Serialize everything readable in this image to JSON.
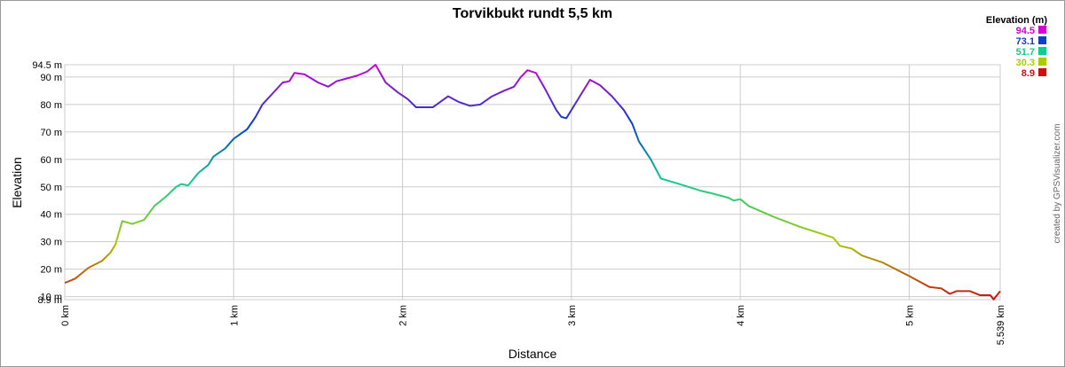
{
  "chart_data": {
    "type": "line",
    "title": "Torvikbukt rundt 5,5 km",
    "x_label": "Distance",
    "y_label": "Elevation",
    "credit": "created by GPSVisualizer.com",
    "legend": {
      "title": "Elevation (m)",
      "items": [
        {
          "value": 94.5,
          "color": "#d400d4"
        },
        {
          "value": 73.1,
          "color": "#0a3fd0"
        },
        {
          "value": 51.7,
          "color": "#10cc90"
        },
        {
          "value": 30.3,
          "color": "#a8cc00"
        },
        {
          "value": 8.9,
          "color": "#cc1010"
        }
      ]
    },
    "xlim": [
      0,
      5.539
    ],
    "ylim": [
      8.9,
      94.5
    ],
    "xticks": [
      {
        "value": 0,
        "label": "0 km"
      },
      {
        "value": 1,
        "label": "1 km"
      },
      {
        "value": 2,
        "label": "2 km"
      },
      {
        "value": 3,
        "label": "3 km"
      },
      {
        "value": 4,
        "label": "4 km"
      },
      {
        "value": 5,
        "label": "5 km"
      },
      {
        "value": 5.539,
        "label": "5.539 km"
      }
    ],
    "yticks": [
      {
        "value": 8.9,
        "label": "8.9 m"
      },
      {
        "value": 10,
        "label": "10 m"
      },
      {
        "value": 20,
        "label": "20 m"
      },
      {
        "value": 30,
        "label": "30 m"
      },
      {
        "value": 40,
        "label": "40 m"
      },
      {
        "value": 50,
        "label": "50 m"
      },
      {
        "value": 60,
        "label": "60 m"
      },
      {
        "value": 70,
        "label": "70 m"
      },
      {
        "value": 80,
        "label": "80 m"
      },
      {
        "value": 90,
        "label": "90 m"
      },
      {
        "value": 94.5,
        "label": "94.5 m"
      }
    ],
    "grid": true,
    "x": [
      0,
      0.06,
      0.14,
      0.22,
      0.27,
      0.3,
      0.34,
      0.4,
      0.47,
      0.53,
      0.6,
      0.66,
      0.69,
      0.73,
      0.79,
      0.85,
      0.88,
      0.95,
      1.0,
      1.08,
      1.13,
      1.17,
      1.23,
      1.29,
      1.33,
      1.36,
      1.42,
      1.5,
      1.56,
      1.61,
      1.67,
      1.73,
      1.79,
      1.84,
      1.9,
      1.97,
      2.03,
      2.08,
      2.18,
      2.27,
      2.33,
      2.4,
      2.46,
      2.53,
      2.6,
      2.66,
      2.7,
      2.74,
      2.79,
      2.85,
      2.91,
      2.94,
      2.97,
      3.02,
      3.07,
      3.11,
      3.17,
      3.24,
      3.31,
      3.36,
      3.4,
      3.47,
      3.53,
      3.64,
      3.77,
      3.84,
      3.93,
      3.96,
      4.0,
      4.05,
      4.2,
      4.35,
      4.5,
      4.55,
      4.59,
      4.66,
      4.72,
      4.84,
      5.0,
      5.12,
      5.19,
      5.24,
      5.28,
      5.36,
      5.42,
      5.48,
      5.5,
      5.539
    ],
    "series": [
      {
        "name": "Elevation",
        "values": [
          15,
          16.5,
          20.5,
          23,
          26,
          29,
          37.5,
          36.5,
          38,
          43,
          46.5,
          50,
          51,
          50.5,
          55,
          58,
          61,
          64,
          67.5,
          71,
          75.5,
          80,
          84,
          88,
          88.5,
          91.5,
          91,
          88,
          86.5,
          88.5,
          89.5,
          90.5,
          92,
          94.5,
          88,
          84.5,
          82,
          79,
          79,
          83,
          81,
          79.5,
          80,
          83,
          85,
          86.5,
          90,
          92.5,
          91.5,
          85,
          78,
          75.5,
          75,
          80,
          85,
          89,
          87,
          83,
          78,
          73,
          66.5,
          60,
          53,
          51,
          48.5,
          47.5,
          46,
          45,
          45.5,
          43,
          39,
          35.5,
          32.5,
          31.5,
          28.5,
          27.5,
          25,
          22.5,
          17.5,
          13.5,
          13,
          11,
          12,
          12,
          10.5,
          10.5,
          9,
          12
        ]
      }
    ]
  }
}
